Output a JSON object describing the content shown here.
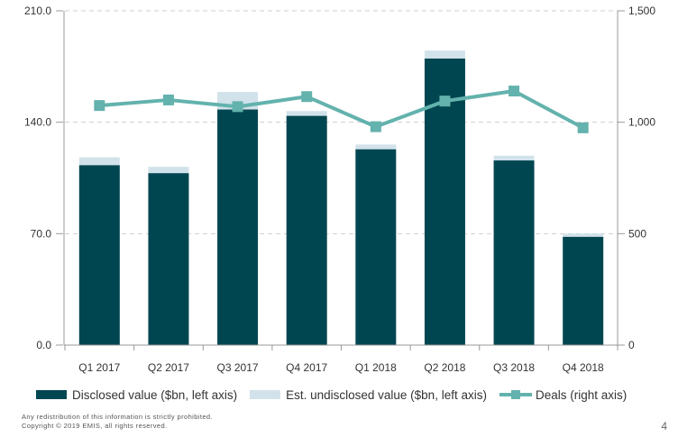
{
  "chart_data": {
    "type": "bar",
    "categories": [
      "Q1 2017",
      "Q2 2017",
      "Q3 2017",
      "Q4 2017",
      "Q1 2018",
      "Q2 2018",
      "Q3 2018",
      "Q4 2018"
    ],
    "series": [
      {
        "name": "Disclosed value ($bn, left axis)",
        "type": "stacked-bar",
        "axis": "left",
        "color": "#004651",
        "values": [
          113,
          108,
          148,
          144,
          123,
          180,
          116,
          68
        ]
      },
      {
        "name": "Est. undisclosed value ($bn, left axis)",
        "type": "stacked-bar",
        "axis": "left",
        "color": "#d2e2ea",
        "values": [
          5,
          4,
          11,
          3,
          3,
          5,
          3,
          2
        ]
      },
      {
        "name": "Deals (right axis)",
        "type": "line",
        "axis": "right",
        "color": "#63b2ad",
        "values": [
          1075,
          1100,
          1070,
          1115,
          980,
          1095,
          1140,
          975
        ]
      }
    ],
    "left_axis": {
      "ylim": [
        0,
        210
      ],
      "ticks": [
        "0.0",
        "70.0",
        "140.0",
        "210.0"
      ]
    },
    "right_axis": {
      "ylim": [
        0,
        1500
      ],
      "ticks": [
        "0",
        "500",
        "1,000",
        "1,500"
      ]
    },
    "grid": true,
    "legend_position": "bottom"
  },
  "footnote": {
    "line1": "Any redistribution of this information is strictly prohibited.",
    "line2": "Copyright © 2019 EMIS, all rights reserved."
  },
  "page_number": "4"
}
